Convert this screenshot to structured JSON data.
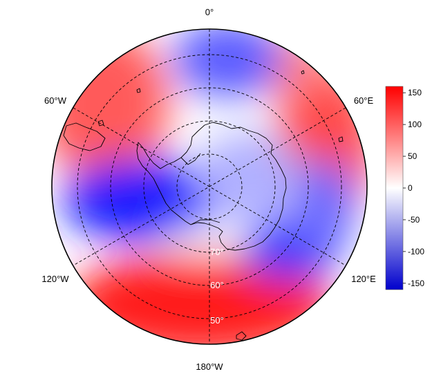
{
  "map": {
    "lon_labels": {
      "top": "0°",
      "upper_left": "60°W",
      "upper_right": "60°E",
      "lower_left": "120°W",
      "lower_right": "120°E",
      "bottom": "180°W"
    },
    "lat_labels": [
      "70°",
      "60°",
      "50°"
    ],
    "colors": {
      "positive": "#ff0000",
      "negative": "#0000cc",
      "neutral": "#ffffff",
      "coast": "#000000",
      "grid": "#000000"
    }
  },
  "colorbar": {
    "ticks": [
      "150",
      "100",
      "50",
      "0",
      "-50",
      "-100",
      "-150"
    ],
    "tick_values": [
      150,
      100,
      50,
      0,
      -50,
      -100,
      -150
    ],
    "range": [
      -160,
      160
    ]
  }
}
